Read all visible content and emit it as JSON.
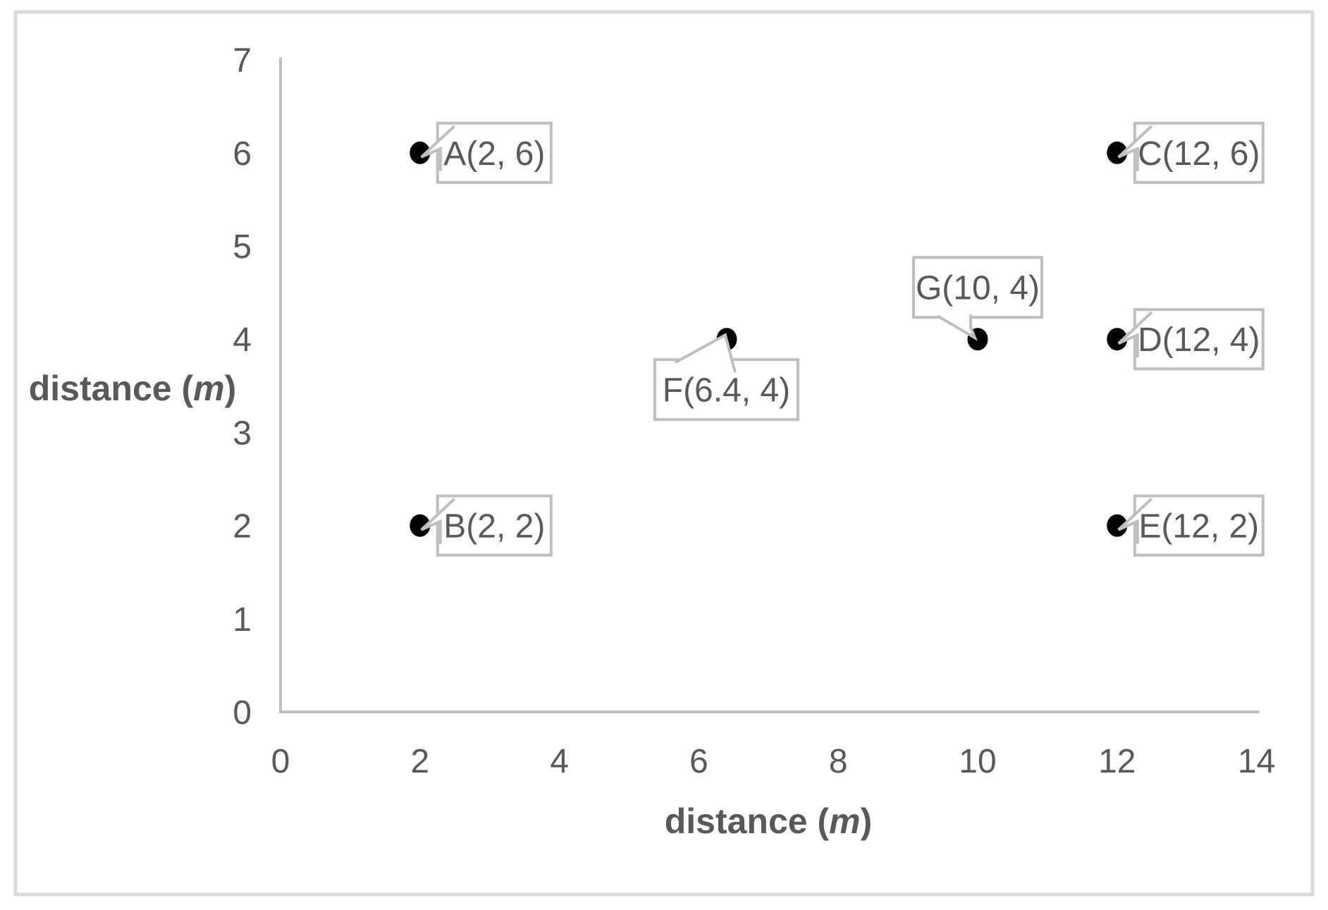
{
  "chart_data": {
    "type": "scatter",
    "title": "",
    "xlabel": {
      "text": "distance (m)",
      "pre": "distance (",
      "italic": "m",
      "post": ")"
    },
    "ylabel": {
      "text": "distance (m)",
      "pre": "distance (",
      "italic": "m",
      "post": ")"
    },
    "xlim": [
      0,
      14
    ],
    "ylim": [
      0,
      7
    ],
    "xticks": [
      0,
      2,
      4,
      6,
      8,
      10,
      12,
      14
    ],
    "yticks": [
      0,
      1,
      2,
      3,
      4,
      5,
      6,
      7
    ],
    "grid": false,
    "legend": false,
    "points": [
      {
        "name": "A",
        "x": 2,
        "y": 6,
        "label": "A(2, 6)",
        "label_position": "right"
      },
      {
        "name": "B",
        "x": 2,
        "y": 2,
        "label": "B(2, 2)",
        "label_position": "right"
      },
      {
        "name": "C",
        "x": 12,
        "y": 6,
        "label": "C(12, 6)",
        "label_position": "right"
      },
      {
        "name": "D",
        "x": 12,
        "y": 4,
        "label": "D(12, 4)",
        "label_position": "right"
      },
      {
        "name": "E",
        "x": 12,
        "y": 2,
        "label": "E(12, 2)",
        "label_position": "right"
      },
      {
        "name": "F",
        "x": 6.4,
        "y": 4,
        "label": "F(6.4, 4)",
        "label_position": "below-left"
      },
      {
        "name": "G",
        "x": 10,
        "y": 4,
        "label": "G(10, 4)",
        "label_position": "above-left"
      }
    ],
    "colors": {
      "point": "#000000",
      "callout_border": "#bfbfbf",
      "callout_fill": "#ffffff",
      "callout_text": "#595959",
      "axis_line": "#bfbfbf",
      "tick_text": "#595959",
      "axis_title_text": "#595959",
      "frame_border": "#d9d9d9",
      "background": "#ffffff"
    }
  }
}
